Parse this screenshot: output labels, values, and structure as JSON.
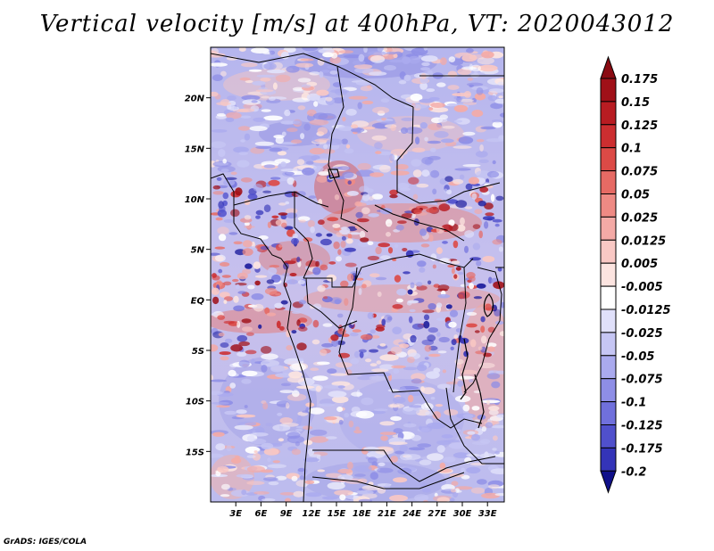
{
  "title": "Vertical velocity [m/s] at 400hPa, VT: 2020043012",
  "credit": "GrADS: IGES/COLA",
  "map": {
    "lon_range": [
      0,
      35
    ],
    "lat_range": [
      -20,
      25
    ],
    "lon_ticks": [
      {
        "lon": 3,
        "label": "3E"
      },
      {
        "lon": 6,
        "label": "6E"
      },
      {
        "lon": 9,
        "label": "9E"
      },
      {
        "lon": 12,
        "label": "12E"
      },
      {
        "lon": 15,
        "label": "15E"
      },
      {
        "lon": 18,
        "label": "18E"
      },
      {
        "lon": 21,
        "label": "21E"
      },
      {
        "lon": 24,
        "label": "24E"
      },
      {
        "lon": 27,
        "label": "27E"
      },
      {
        "lon": 30,
        "label": "30E"
      },
      {
        "lon": 33,
        "label": "33E"
      }
    ],
    "lat_ticks": [
      {
        "lat": 20,
        "label": "20N"
      },
      {
        "lat": 15,
        "label": "15N"
      },
      {
        "lat": 10,
        "label": "10N"
      },
      {
        "lat": 5,
        "label": "5N"
      },
      {
        "lat": 0,
        "label": "EQ"
      },
      {
        "lat": -5,
        "label": "5S"
      },
      {
        "lat": -10,
        "label": "10S"
      },
      {
        "lat": -15,
        "label": "15S"
      }
    ]
  },
  "colorbar": {
    "levels": [
      {
        "label": "0.175",
        "color": "#a01018"
      },
      {
        "label": "0.15",
        "color": "#b81c22"
      },
      {
        "label": "0.125",
        "color": "#cc2e30"
      },
      {
        "label": "0.1",
        "color": "#dc4a46"
      },
      {
        "label": "0.075",
        "color": "#e66a64"
      },
      {
        "label": "0.05",
        "color": "#ee8a84"
      },
      {
        "label": "0.025",
        "color": "#f4aaa6"
      },
      {
        "label": "0.0125",
        "color": "#f9c8c4"
      },
      {
        "label": "0.005",
        "color": "#fce4e0"
      },
      {
        "label": "-0.005",
        "color": "#ffffff"
      },
      {
        "label": "-0.0125",
        "color": "#e0e0fa"
      },
      {
        "label": "-0.025",
        "color": "#c6c6f4"
      },
      {
        "label": "-0.05",
        "color": "#aaaaee"
      },
      {
        "label": "-0.075",
        "color": "#8e8ee6"
      },
      {
        "label": "-0.1",
        "color": "#7070dc"
      },
      {
        "label": "-0.125",
        "color": "#5050cc"
      },
      {
        "label": "-0.175",
        "color": "#3434b8"
      },
      {
        "label": "-0.2",
        "color": "#1c1c9c"
      }
    ],
    "top_arrow_color": "#8a0a12",
    "bottom_arrow_color": "#10108a"
  }
}
